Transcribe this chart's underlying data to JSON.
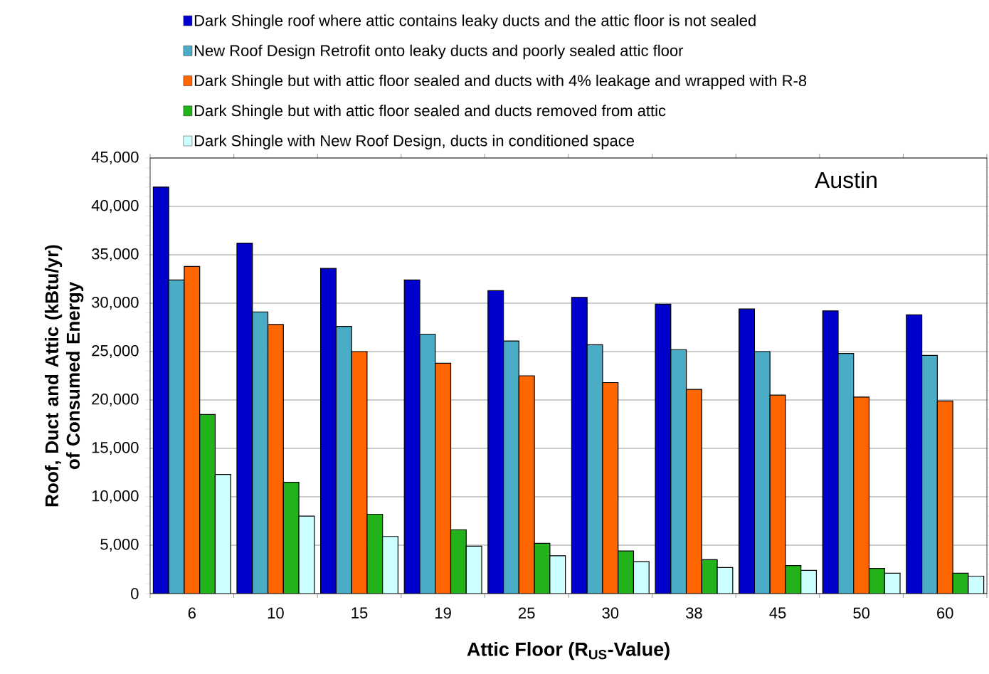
{
  "chart_data": {
    "type": "bar",
    "xlabel": "Attic Floor (R$_{US}$-Value)",
    "ylabel": "Roof, Duct and Attic (kBtu/yr) of Consumed Energy",
    "categories": [
      "6",
      "10",
      "15",
      "19",
      "25",
      "30",
      "38",
      "45",
      "50",
      "60"
    ],
    "series": [
      {
        "name": "Dark Shingle roof where attic contains leaky ducts and the attic floor is not sealed",
        "color": "#0000cc",
        "values": [
          42000,
          36200,
          33600,
          32400,
          31300,
          30600,
          29900,
          29400,
          29200,
          28800
        ]
      },
      {
        "name": "New Roof Design Retrofit onto leaky ducts and poorly sealed attic floor",
        "color": "#4bacc6",
        "values": [
          32400,
          29100,
          27600,
          26800,
          26100,
          25700,
          25200,
          25000,
          24800,
          24600
        ]
      },
      {
        "name": "Dark Shingle but with attic floor sealed and ducts with 4% leakage and wrapped with R-8",
        "color": "#ff6600",
        "values": [
          33800,
          27800,
          25000,
          23800,
          22500,
          21800,
          21100,
          20500,
          20300,
          19900
        ]
      },
      {
        "name": "Dark Shingle but with attic floor sealed and ducts removed from attic",
        "color": "#22b31a",
        "values": [
          18500,
          11500,
          8200,
          6600,
          5200,
          4400,
          3500,
          2900,
          2600,
          2100
        ]
      },
      {
        "name": "Dark Shingle with New Roof Design, ducts in conditioned space",
        "color": "#ccffff",
        "values": [
          12300,
          8000,
          5900,
          4900,
          3900,
          3300,
          2700,
          2400,
          2100,
          1800
        ]
      }
    ],
    "ylim": [
      0,
      45000
    ],
    "yticks": [
      0,
      {
        "value": 5000,
        "label": "5,000"
      },
      {
        "value": 10000,
        "label": "10,000"
      },
      {
        "value": 15000,
        "label": "15,000"
      },
      {
        "value": 20000,
        "label": "20,000"
      },
      {
        "value": 25000,
        "label": "25,000"
      },
      {
        "value": 30000,
        "label": "30,000"
      },
      {
        "value": 35000,
        "label": "35,000"
      },
      {
        "value": 40000,
        "label": "40,000"
      },
      {
        "value": 45000,
        "label": "45,000"
      }
    ],
    "grid": "y",
    "legend": "top",
    "annotations": [
      "Austin"
    ]
  }
}
